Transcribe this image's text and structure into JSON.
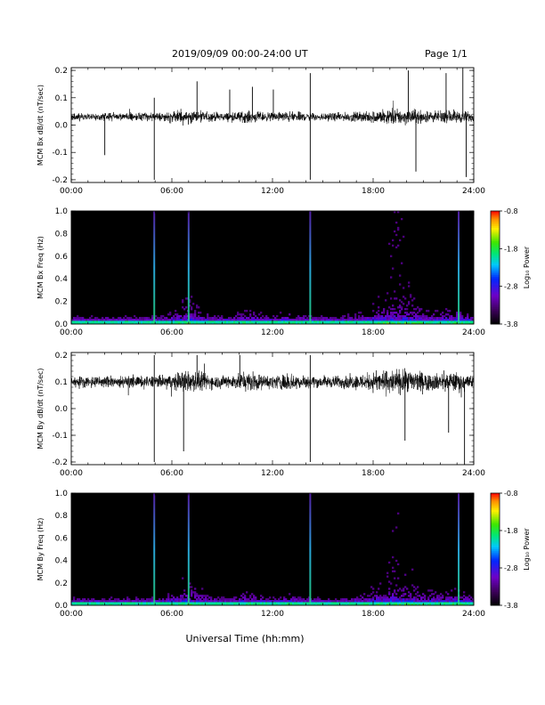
{
  "header": {
    "title": "2019/09/09  00:00-24:00 UT",
    "page": "Page 1/1"
  },
  "xlabel": "Universal Time (hh:mm)",
  "colors": {
    "background": "#ffffff",
    "spectrogram_background": "#000000",
    "trace": "#000000"
  },
  "chart_data": [
    {
      "type": "line",
      "panel": "bx-timeseries",
      "ylabel": "MCM Bx dB/dt (nT/sec)",
      "xlim": [
        0,
        24
      ],
      "ylim": [
        -0.21,
        0.21
      ],
      "xticks": [
        "00:00",
        "06:00",
        "12:00",
        "18:00",
        "24:00"
      ],
      "yticks": [
        -0.2,
        -0.1,
        0.0,
        0.1,
        0.2
      ],
      "ytick_labels": [
        "-0.2",
        "-0.1",
        "0.0",
        "0.1",
        "0.2"
      ],
      "baseline": 0.03,
      "spikes": [
        {
          "t": 4.95,
          "v": -0.2
        },
        {
          "t": 4.95,
          "v": 0.1
        },
        {
          "t": 7.5,
          "v": 0.16
        },
        {
          "t": 9.45,
          "v": 0.13
        },
        {
          "t": 10.8,
          "v": 0.14
        },
        {
          "t": 12.05,
          "v": 0.13
        },
        {
          "t": 14.25,
          "v": -0.2
        },
        {
          "t": 14.25,
          "v": 0.19
        },
        {
          "t": 20.1,
          "v": 0.2
        },
        {
          "t": 22.35,
          "v": 0.19
        },
        {
          "t": 23.35,
          "v": 0.21
        },
        {
          "t": 23.55,
          "v": -0.19
        },
        {
          "t": 20.55,
          "v": -0.17
        },
        {
          "t": 2.0,
          "v": -0.11
        }
      ]
    },
    {
      "type": "heatmap",
      "panel": "bx-spectrogram",
      "ylabel": "MCM Bx Freq (Hz)",
      "xlim": [
        0,
        24
      ],
      "ylim": [
        0.0,
        1.0
      ],
      "xticks": [
        "00:00",
        "06:00",
        "12:00",
        "18:00",
        "24:00"
      ],
      "yticks": [
        0.0,
        0.2,
        0.4,
        0.6,
        0.8,
        1.0
      ],
      "ytick_labels": [
        "0.0",
        "0.2",
        "0.4",
        "0.6",
        "0.8",
        "1.0"
      ],
      "colorbar": {
        "label": "Log₁₀ Power",
        "range": [
          -3.8,
          -0.8
        ],
        "tick_labels": [
          "-0.8",
          "-1.8",
          "-2.8",
          "-3.8"
        ]
      },
      "broadband_events_ut": [
        4.95,
        7.0,
        14.25,
        23.1
      ]
    },
    {
      "type": "line",
      "panel": "by-timeseries",
      "ylabel": "MCM By dB/dt (nT/sec)",
      "xlim": [
        0,
        24
      ],
      "ylim": [
        -0.21,
        0.21
      ],
      "xticks": [
        "00:00",
        "06:00",
        "12:00",
        "18:00",
        "24:00"
      ],
      "yticks": [
        -0.2,
        -0.1,
        0.0,
        0.1,
        0.2
      ],
      "ytick_labels": [
        "-0.2",
        "-0.1",
        "0.0",
        "0.1",
        "0.2"
      ],
      "baseline": 0.1,
      "spikes": [
        {
          "t": 4.95,
          "v": -0.2
        },
        {
          "t": 4.95,
          "v": 0.2
        },
        {
          "t": 6.7,
          "v": -0.16
        },
        {
          "t": 7.5,
          "v": 0.2
        },
        {
          "t": 14.25,
          "v": -0.2
        },
        {
          "t": 14.25,
          "v": 0.2
        },
        {
          "t": 19.9,
          "v": -0.12
        },
        {
          "t": 23.45,
          "v": -0.21
        },
        {
          "t": 22.5,
          "v": -0.09
        },
        {
          "t": 10.05,
          "v": 0.2
        }
      ]
    },
    {
      "type": "heatmap",
      "panel": "by-spectrogram",
      "ylabel": "MCM By Freq (Hz)",
      "xlim": [
        0,
        24
      ],
      "ylim": [
        0.0,
        1.0
      ],
      "xticks": [
        "00:00",
        "06:00",
        "12:00",
        "18:00",
        "24:00"
      ],
      "yticks": [
        0.0,
        0.2,
        0.4,
        0.6,
        0.8,
        1.0
      ],
      "ytick_labels": [
        "0.0",
        "0.2",
        "0.4",
        "0.6",
        "0.8",
        "1.0"
      ],
      "colorbar": {
        "label": "Log₁₀ Power",
        "range": [
          -3.8,
          -0.8
        ],
        "tick_labels": [
          "-0.8",
          "-1.8",
          "-2.8",
          "-3.8"
        ]
      },
      "broadband_events_ut": [
        4.95,
        7.0,
        14.25,
        23.1
      ]
    }
  ]
}
